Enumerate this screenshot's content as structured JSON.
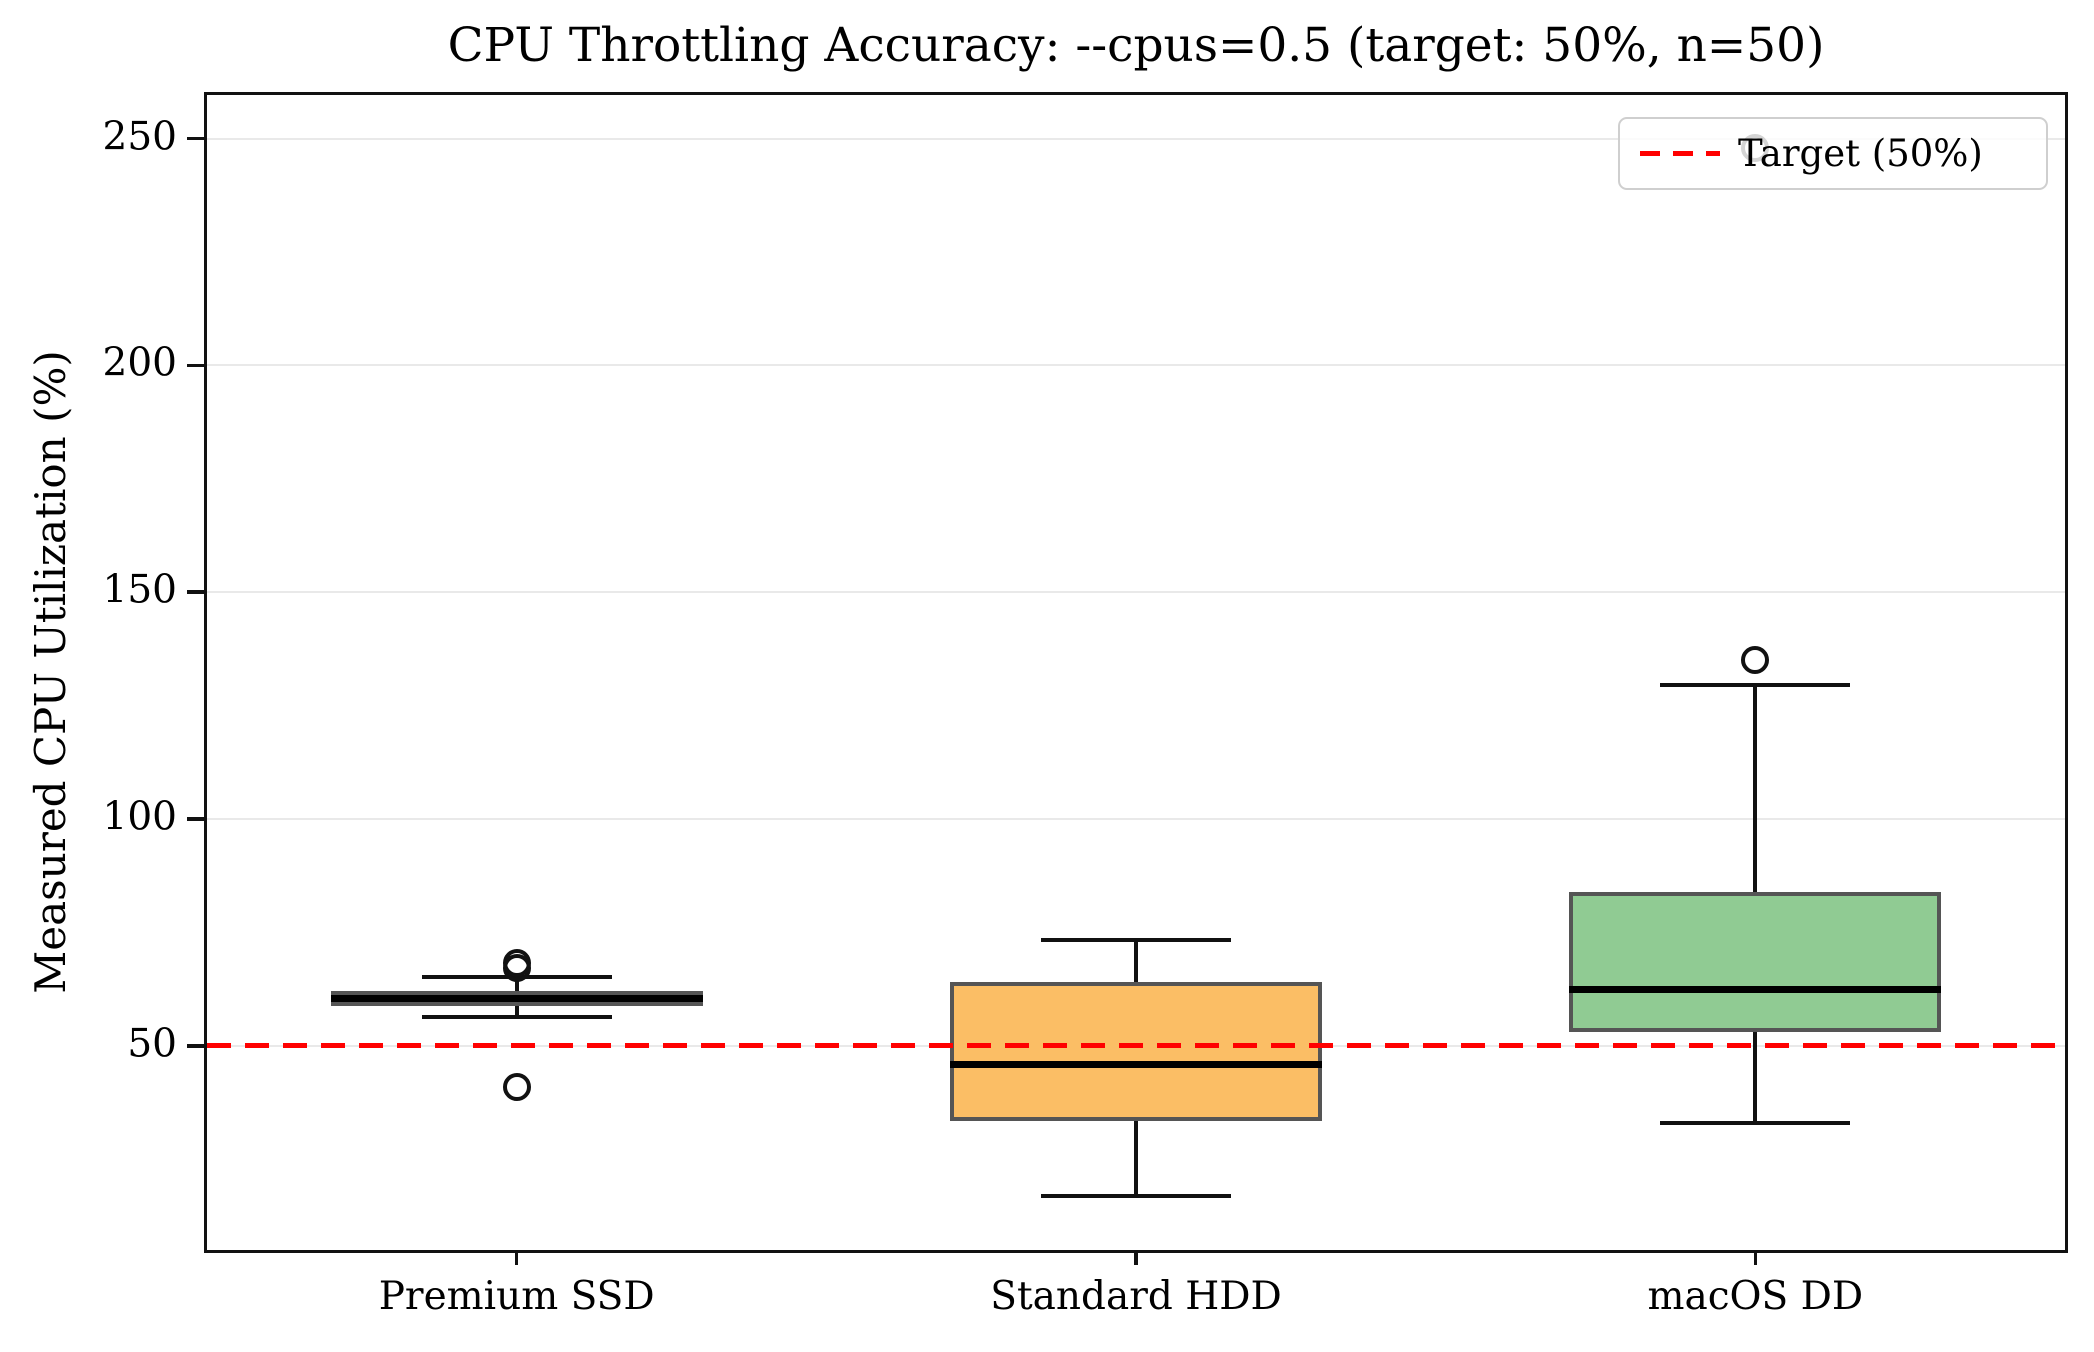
{
  "chart_data": {
    "type": "boxplot",
    "title": "CPU Throttling Accuracy: --cpus=0.5 (target: 50%, n=50)",
    "ylabel": "Measured CPU Utilization (%)",
    "categories": [
      "Premium SSD",
      "Standard HDD",
      "macOS DD"
    ],
    "yticks": [
      50,
      100,
      150,
      200,
      250
    ],
    "ylim": [
      5,
      259.6
    ],
    "grid": "horizontal-light-gray",
    "series": [
      {
        "name": "Premium SSD",
        "color": "#4781bd",
        "whislo": 56.3,
        "q1": 58.7,
        "med": 60.4,
        "q3": 62.1,
        "whishi": 65.2,
        "fliers": [
          68.3,
          67.2,
          41.0
        ]
      },
      {
        "name": "Standard HDD",
        "color": "#fbbe65",
        "whislo": 17.0,
        "q1": 33.4,
        "med": 45.8,
        "q3": 64.0,
        "whishi": 73.4,
        "fliers": []
      },
      {
        "name": "macOS DD",
        "color": "#90cb93",
        "whislo": 33.0,
        "q1": 53.0,
        "med": 62.5,
        "q3": 84.0,
        "whishi": 129.5,
        "fliers": [
          135.0,
          248.0
        ]
      }
    ],
    "target": {
      "value": 50,
      "color": "#ff0000",
      "label": "Target (50%)"
    },
    "legend": {
      "position": "upper right",
      "entries": [
        {
          "label": "Target (50%)",
          "style": "dashed-red-line"
        }
      ]
    },
    "style": {
      "box_edge_color": "#555555",
      "median_color": "#000000",
      "whisker_color": "#111111",
      "grid_color": "#e9e9e9",
      "background": "#ffffff"
    }
  }
}
